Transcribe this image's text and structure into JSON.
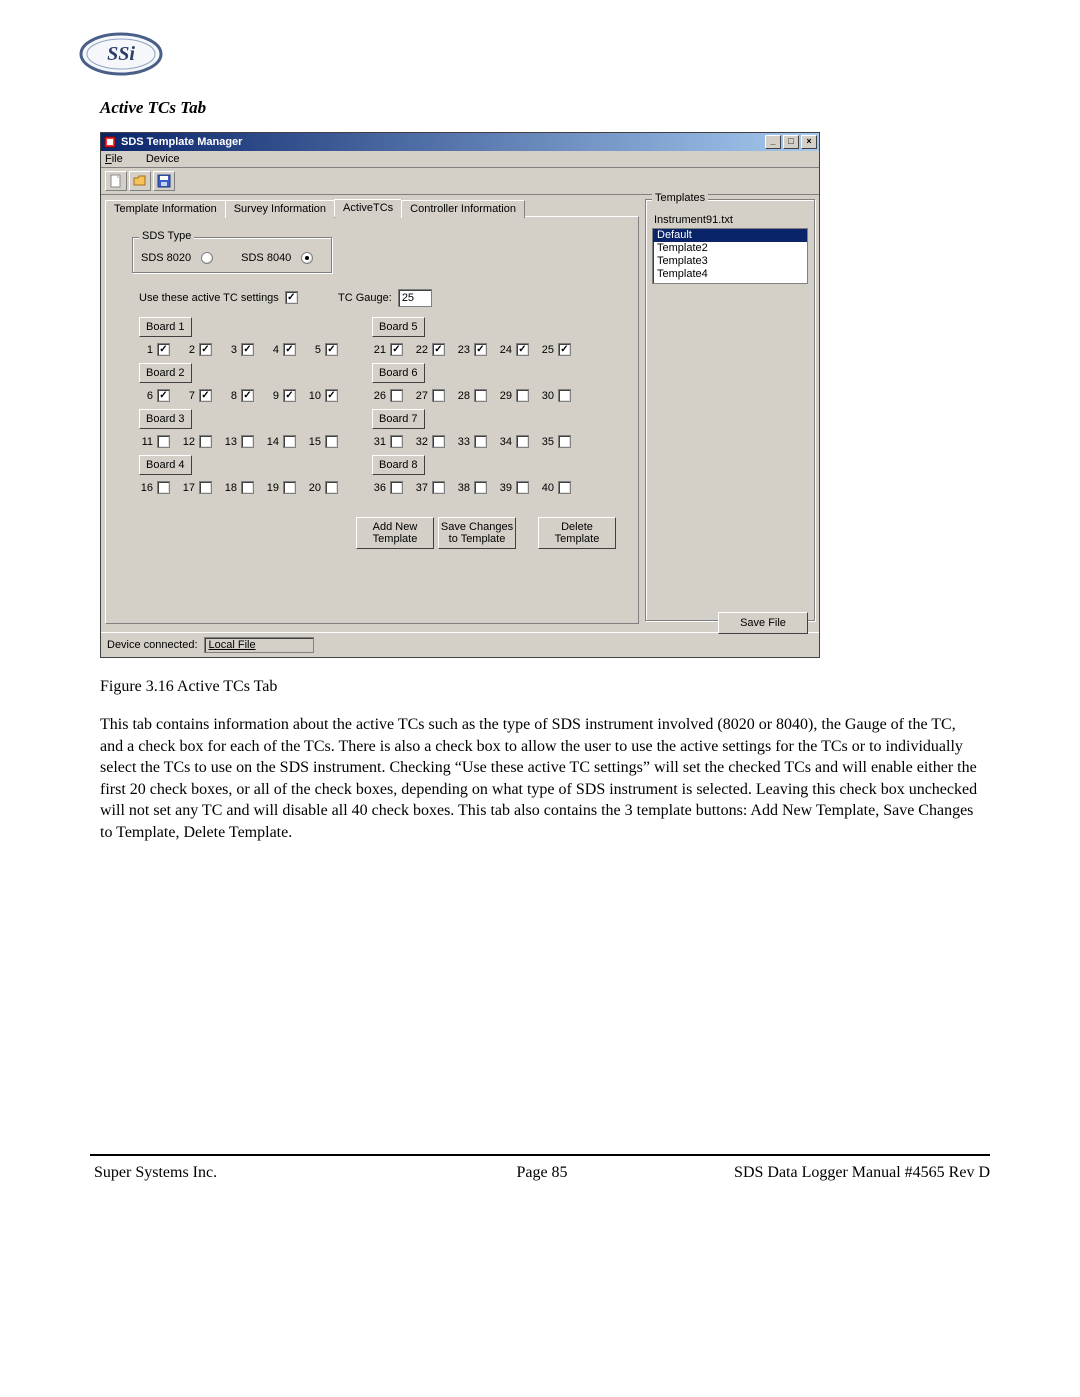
{
  "section_title": "Active TCs Tab",
  "window": {
    "title": "SDS Template Manager",
    "menu": {
      "file": "File",
      "device": "Device"
    },
    "tabs": [
      "Template Information",
      "Survey Information",
      "ActiveTCs",
      "Controller Information"
    ],
    "active_tab_index": 2,
    "sds_type": {
      "legend": "SDS Type",
      "opt1": "SDS 8020",
      "opt2": "SDS 8040",
      "selected": "SDS 8040"
    },
    "use_active_label": "Use these active TC settings",
    "use_active_checked": true,
    "tc_gauge_label": "TC Gauge:",
    "tc_gauge_value": "25",
    "boards": [
      "Board 1",
      "Board 2",
      "Board 3",
      "Board 4",
      "Board 5",
      "Board 6",
      "Board 7",
      "Board 8"
    ],
    "tc_rows": [
      {
        "start": 1,
        "checked": [
          true,
          true,
          true,
          true,
          true
        ]
      },
      {
        "start": 6,
        "checked": [
          true,
          true,
          true,
          true,
          true
        ]
      },
      {
        "start": 11,
        "checked": [
          false,
          false,
          false,
          false,
          false
        ]
      },
      {
        "start": 16,
        "checked": [
          false,
          false,
          false,
          false,
          false
        ]
      },
      {
        "start": 21,
        "checked": [
          true,
          true,
          true,
          true,
          true
        ]
      },
      {
        "start": 26,
        "checked": [
          false,
          false,
          false,
          false,
          false
        ]
      },
      {
        "start": 31,
        "checked": [
          false,
          false,
          false,
          false,
          false
        ]
      },
      {
        "start": 36,
        "checked": [
          false,
          false,
          false,
          false,
          false
        ]
      }
    ],
    "buttons": {
      "add": "Add New\nTemplate",
      "save": "Save Changes\nto Template",
      "delete": "Delete\nTemplate",
      "save_file": "Save File"
    },
    "templates": {
      "legend": "Templates",
      "file": "Instrument91.txt",
      "items": [
        "Default",
        "Template2",
        "Template3",
        "Template4"
      ],
      "selected_index": 0
    },
    "status_label": "Device connected:",
    "status_value": "Local File"
  },
  "figure_caption": "Figure 3.16 Active TCs Tab",
  "paragraph": "This tab contains information about the active TCs such as the type of SDS instrument involved (8020 or 8040), the Gauge of the TC, and a check box for each of the TCs.  There is also a check box to allow the user to use the active settings for the TCs or to individually select the TCs to use on the SDS instrument.  Checking “Use these active TC settings” will set the checked TCs and will enable either the first 20 check boxes, or all of the check boxes, depending on what type of SDS instrument is selected.  Leaving this check box unchecked will not set any TC and will disable all 40 check boxes.  This tab also contains the 3 template buttons: Add New Template, Save Changes to Template, Delete Template.",
  "footer": {
    "left": "Super Systems Inc.",
    "center": "Page 85",
    "right": "SDS Data Logger Manual #4565 Rev D"
  },
  "colors": {
    "win_bg": "#d4d0c8",
    "title_grad_a": "#0a246a",
    "title_grad_b": "#a6caf0",
    "selected_bg": "#0a246a"
  }
}
